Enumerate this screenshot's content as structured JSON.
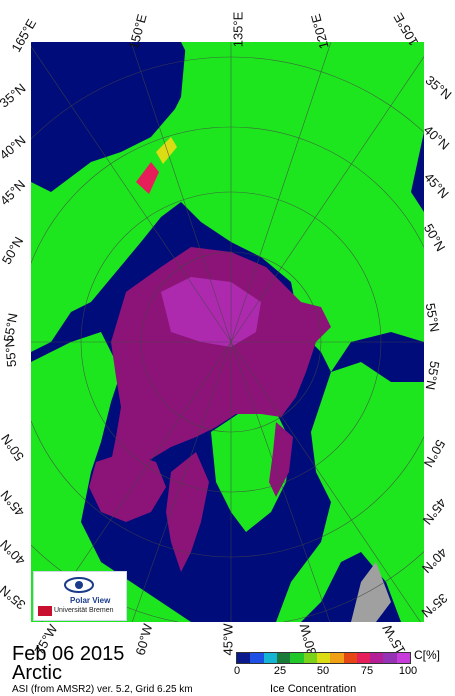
{
  "date_title": "Feb 06 2015",
  "region_title": "Arctic",
  "product_info": "ASI (from AMSR2) ver. 5.2,  Grid 6.25 km",
  "colorbar": {
    "unit": "C[%]",
    "label": "Ice Concentration",
    "ticks": [
      "0",
      "25",
      "50",
      "75",
      "100"
    ],
    "colors": [
      "#0a1a8c",
      "#1e50e6",
      "#14b4d2",
      "#1a7a3a",
      "#22c82a",
      "#7ad21a",
      "#dcdc14",
      "#f0a014",
      "#e64614",
      "#e61e5a",
      "#b41e96",
      "#9632b4",
      "#c83cdc"
    ]
  },
  "colors": {
    "ocean": "#000c7a",
    "land": "#1ee61e",
    "ice": "#8c1478",
    "ice_light": "#c83cdc",
    "no_data": "#a0a0a0"
  },
  "logo": {
    "name": "Polar View",
    "institution": "Universität Bremen"
  },
  "labels": {
    "top": [
      "165°E",
      "150°E",
      "135°E",
      "120°E",
      "105°E"
    ],
    "left": [
      "35°N",
      "40°N",
      "45°N",
      "50°N",
      "55°N",
      "55°N",
      "50°N",
      "45°N",
      "40°N",
      "35°N"
    ],
    "right": [
      "35°N",
      "40°N",
      "45°N",
      "50°N",
      "55°N",
      "55°N",
      "50°N",
      "45°N",
      "40°N",
      "35°N"
    ],
    "bottom": [
      "75°W",
      "60°W",
      "45°W",
      "30°W",
      "15°W"
    ]
  }
}
